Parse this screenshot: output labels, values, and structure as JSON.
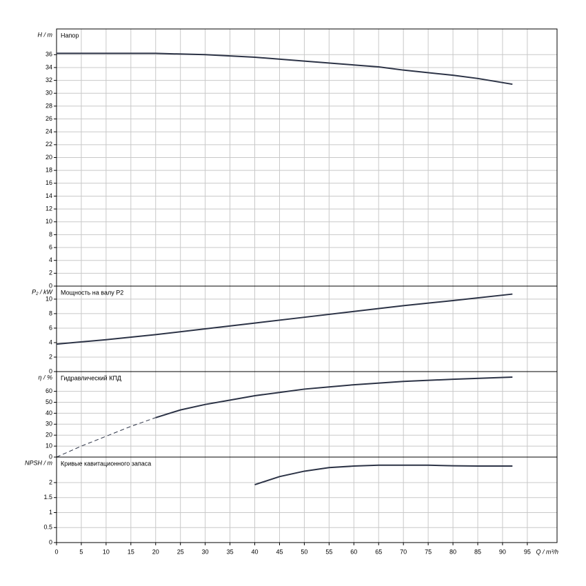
{
  "chart_data": [
    {
      "type": "line",
      "title": "Напор",
      "ylabel": "H / m",
      "xlim": [
        0,
        101
      ],
      "ylim": [
        0,
        40
      ],
      "yticks": [
        0,
        2,
        4,
        6,
        8,
        10,
        12,
        14,
        16,
        18,
        20,
        22,
        24,
        26,
        28,
        30,
        32,
        34,
        36
      ],
      "grid": true,
      "series": [
        {
          "color": "#2b3245",
          "x": [
            0,
            20,
            30,
            40,
            50,
            60,
            65,
            70,
            80,
            85,
            92
          ],
          "values": [
            36.2,
            36.2,
            36.0,
            35.6,
            35.0,
            34.4,
            34.1,
            33.6,
            32.8,
            32.3,
            31.4
          ]
        }
      ]
    },
    {
      "type": "line",
      "title": "Мощность на валу P2",
      "ylabel": "P₂ / kW",
      "xlim": [
        0,
        101
      ],
      "ylim": [
        0,
        11.8
      ],
      "yticks": [
        0,
        2,
        4,
        6,
        8,
        10
      ],
      "grid": true,
      "series": [
        {
          "color": "#2b3245",
          "x": [
            0,
            10,
            20,
            30,
            40,
            50,
            60,
            70,
            80,
            92
          ],
          "values": [
            3.8,
            4.4,
            5.1,
            5.9,
            6.7,
            7.5,
            8.3,
            9.1,
            9.8,
            10.7
          ]
        }
      ]
    },
    {
      "type": "line",
      "title": "Гидравлический КПД",
      "ylabel": "η / %",
      "xlim": [
        0,
        101
      ],
      "ylim": [
        0,
        78
      ],
      "yticks": [
        0,
        10,
        20,
        30,
        40,
        50,
        60
      ],
      "grid": true,
      "series": [
        {
          "color": "#2b3245",
          "dashed": true,
          "x": [
            0,
            5,
            10,
            15,
            20
          ],
          "values": [
            0,
            10,
            19,
            28,
            36
          ]
        },
        {
          "color": "#2b3245",
          "x": [
            20,
            25,
            30,
            35,
            40,
            45,
            50,
            55,
            60,
            70,
            80,
            92
          ],
          "values": [
            36,
            43,
            48,
            52,
            56,
            59,
            62,
            64,
            66,
            69,
            71,
            73
          ]
        }
      ]
    },
    {
      "type": "line",
      "title": "Кривые кавитационного запаса",
      "ylabel": "NPSH / m",
      "xlabel": "Q / m³/h",
      "xlim": [
        0,
        101
      ],
      "ylim": [
        0,
        2.85
      ],
      "xticks": [
        0,
        5,
        10,
        15,
        20,
        25,
        30,
        35,
        40,
        45,
        50,
        55,
        60,
        65,
        70,
        75,
        80,
        85,
        90,
        95
      ],
      "yticks": [
        0,
        0.5,
        1,
        1.5,
        2
      ],
      "grid": true,
      "series": [
        {
          "color": "#2b3245",
          "x": [
            40,
            45,
            50,
            55,
            60,
            65,
            70,
            75,
            80,
            85,
            92
          ],
          "values": [
            1.93,
            2.2,
            2.38,
            2.5,
            2.55,
            2.58,
            2.58,
            2.58,
            2.56,
            2.55,
            2.55
          ]
        }
      ]
    }
  ]
}
